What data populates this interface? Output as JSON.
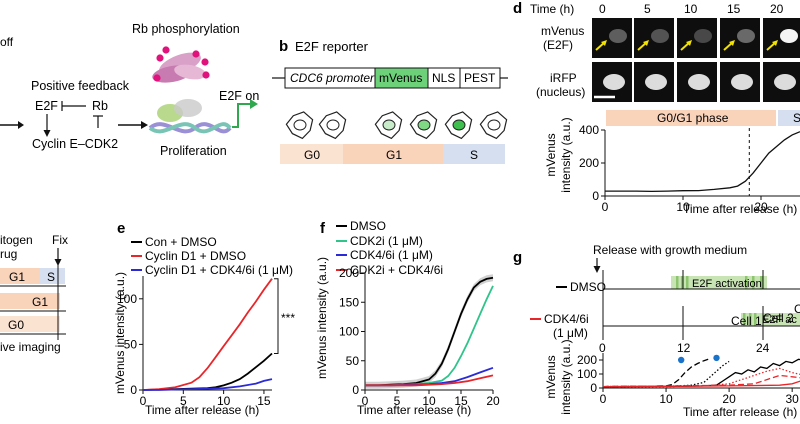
{
  "panels": {
    "b": "b",
    "d": "d",
    "e": "e",
    "f": "f",
    "g": "g"
  },
  "panel_a_top": {
    "off_label": "off",
    "positive_feedback": "Positive feedback",
    "e2f": "E2F",
    "rb": "Rb",
    "cyclin": "Cyclin E–CDK2",
    "rb_phos": "Rb phosphorylation",
    "e2f_on": "E2F on",
    "proliferation": "Proliferation"
  },
  "panel_b": {
    "title": "E2F reporter",
    "segments": [
      "CDC6 promoter",
      "mVenus",
      "NLS",
      "PEST"
    ],
    "phases": [
      "G0",
      "G1",
      "S"
    ],
    "colors": {
      "mvenus": "#6dd17a",
      "g0": "#fbe3d2",
      "g1": "#fad3bb",
      "s": "#d6dff0"
    }
  },
  "panel_d": {
    "time_label": "Time (h)",
    "times": [
      "0",
      "5",
      "10",
      "15",
      "20"
    ],
    "row1_label_1": "mVenus",
    "row1_label_2": "(E2F)",
    "row2_label_1": "iRFP",
    "row2_label_2": "(nucleus)",
    "phase_g0g1": "G0/G1 phase",
    "phase_s": "S",
    "ylabel_1": "mVenus",
    "ylabel_2": "intensity (a.u.)",
    "xlabel": "Time after release (h)",
    "yticks": [
      "0",
      "200",
      "400"
    ],
    "xticks": [
      "0",
      "10",
      "20"
    ]
  },
  "panel_a_bottom": {
    "mitogen": "itogen",
    "drug": "rug",
    "fix": "Fix",
    "g1": "G1",
    "s": "S",
    "g0": "G0",
    "live": "ive imaging"
  },
  "panel_g_top": {
    "release_label": "Release with growth medium",
    "row1": "DMSO",
    "row2_1": "CDK4/6i",
    "row2_2": "(1 μM)",
    "activation_1": "E2F activation",
    "activation_2": "E2F ac",
    "ticks": [
      "0",
      "12",
      "24"
    ]
  },
  "chart_data": [
    {
      "panel": "d",
      "type": "line",
      "title": "",
      "xlabel": "Time after release (h)",
      "ylabel": "mVenus intensity (a.u.)",
      "xlim": [
        0,
        25
      ],
      "ylim": [
        0,
        400
      ],
      "series": [
        {
          "name": "mVenus",
          "x": [
            0,
            2,
            4,
            6,
            8,
            10,
            12,
            14,
            16,
            17,
            18,
            19,
            20,
            21,
            22,
            23,
            24,
            25
          ],
          "values": [
            30,
            30,
            30,
            28,
            30,
            32,
            33,
            40,
            50,
            60,
            90,
            140,
            200,
            260,
            300,
            340,
            370,
            390
          ]
        }
      ]
    },
    {
      "panel": "e",
      "type": "line",
      "xlabel": "Time after release (h)",
      "ylabel": "mVenus intensity (a.u.)",
      "xlim": [
        0,
        16
      ],
      "ylim": [
        0,
        125
      ],
      "yticks": [
        0,
        50,
        100
      ],
      "xticks": [
        0,
        5,
        10,
        15
      ],
      "annotation": "***",
      "series": [
        {
          "name": "Con + DMSO",
          "color": "#000000",
          "x": [
            0,
            2,
            4,
            6,
            8,
            9,
            10,
            11,
            12,
            13,
            14,
            15,
            16
          ],
          "values": [
            0,
            0.5,
            1,
            1.5,
            2,
            3,
            5,
            8,
            12,
            18,
            25,
            32,
            40
          ]
        },
        {
          "name": "Cyclin D1 + DMSO",
          "color": "#e8262a",
          "x": [
            0,
            2,
            4,
            6,
            7,
            8,
            9,
            10,
            11,
            12,
            13,
            14,
            15,
            16
          ],
          "values": [
            0,
            1,
            3,
            8,
            14,
            24,
            36,
            48,
            60,
            72,
            85,
            97,
            110,
            122
          ]
        },
        {
          "name": "Cyclin D1 + CDK4/6i (1 μM)",
          "color": "#2a2ad6",
          "x": [
            0,
            2,
            4,
            6,
            8,
            10,
            12,
            14,
            15,
            16
          ],
          "values": [
            0,
            0,
            0.5,
            1,
            1.5,
            2,
            4,
            7,
            10,
            12
          ]
        }
      ]
    },
    {
      "panel": "f",
      "type": "line",
      "xlabel": "Time after release (h)",
      "ylabel": "mVenus intensity (a.u.)",
      "xlim": [
        0,
        20
      ],
      "ylim": [
        0,
        200
      ],
      "yticks": [
        0,
        50,
        100,
        150,
        200
      ],
      "xticks": [
        0,
        5,
        10,
        15,
        20
      ],
      "series": [
        {
          "name": "DMSO",
          "color": "#000000",
          "x": [
            0,
            2,
            4,
            6,
            8,
            10,
            11,
            12,
            13,
            14,
            15,
            16,
            17,
            18,
            19,
            20
          ],
          "values": [
            8,
            8,
            9,
            10,
            12,
            18,
            28,
            45,
            70,
            100,
            130,
            155,
            175,
            185,
            190,
            192
          ]
        },
        {
          "name": "CDK2i (1 μM)",
          "color": "#2ec48a",
          "x": [
            0,
            2,
            4,
            6,
            8,
            10,
            12,
            13,
            14,
            15,
            16,
            17,
            18,
            19,
            20
          ],
          "values": [
            8,
            8,
            8,
            9,
            10,
            12,
            16,
            24,
            38,
            58,
            80,
            105,
            130,
            155,
            178
          ]
        },
        {
          "name": "CDK4/6i (1 μM)",
          "color": "#2a2ad6",
          "x": [
            0,
            4,
            8,
            10,
            12,
            14,
            16,
            18,
            20
          ],
          "values": [
            8,
            8,
            9,
            10,
            12,
            15,
            22,
            30,
            38
          ]
        },
        {
          "name": "CDK2i + CDK4/6i",
          "color": "#e8262a",
          "x": [
            0,
            4,
            8,
            10,
            12,
            14,
            16,
            18,
            20
          ],
          "values": [
            8,
            8,
            8,
            9,
            10,
            12,
            15,
            20,
            25
          ]
        }
      ]
    },
    {
      "panel": "g",
      "type": "line",
      "xlabel": "Time after release (h)",
      "ylabel": "mVenus intensity (a.u.)",
      "xlim": [
        0,
        36
      ],
      "ylim": [
        0,
        250
      ],
      "yticks": [
        0,
        100,
        200
      ],
      "xticks": [
        0,
        10,
        20,
        30
      ],
      "annotations": [
        "Cell 1",
        "Cell 2",
        "Cell 3"
      ],
      "series": [
        {
          "name": "Cell 1 (DMSO)",
          "style": "dashed",
          "color": "#000000",
          "x": [
            0,
            6,
            10,
            11,
            12,
            13,
            14,
            15,
            16,
            17
          ],
          "values": [
            10,
            12,
            15,
            25,
            60,
            110,
            150,
            175,
            195,
            210
          ]
        },
        {
          "name": "Cell 2 (DMSO)",
          "style": "dotted",
          "color": "#000000",
          "x": [
            0,
            8,
            12,
            14,
            16,
            17,
            18,
            19,
            20
          ],
          "values": [
            10,
            12,
            15,
            20,
            40,
            80,
            120,
            160,
            190
          ]
        },
        {
          "name": "Cell 3 (DMSO)",
          "style": "solid",
          "color": "#000000",
          "x": [
            0,
            12,
            16,
            18,
            19,
            20,
            21,
            22,
            23,
            24,
            25,
            26,
            27,
            28,
            29,
            30,
            31,
            32,
            33,
            34,
            35,
            36
          ],
          "values": [
            10,
            12,
            15,
            20,
            50,
            80,
            110,
            100,
            130,
            115,
            150,
            140,
            175,
            160,
            190,
            180,
            205,
            200,
            220,
            215,
            240,
            235
          ]
        },
        {
          "name": "CDK4/6i cell a",
          "style": "dotted",
          "color": "#e8262a",
          "x": [
            0,
            10,
            16,
            20,
            22,
            24,
            26,
            28,
            30,
            32,
            34,
            36
          ],
          "values": [
            8,
            10,
            15,
            30,
            60,
            90,
            120,
            140,
            110,
            90,
            60,
            40
          ]
        },
        {
          "name": "CDK4/6i cell b",
          "style": "dashed",
          "color": "#e8262a",
          "x": [
            0,
            10,
            20,
            24,
            26,
            28,
            30,
            32,
            34,
            36
          ],
          "values": [
            10,
            14,
            20,
            30,
            60,
            90,
            80,
            70,
            100,
            80
          ]
        },
        {
          "name": "CDK4/6i cell c",
          "style": "solid",
          "color": "#e8262a",
          "x": [
            0,
            10,
            20,
            28,
            30,
            32,
            34,
            36
          ],
          "values": [
            10,
            12,
            15,
            20,
            30,
            60,
            45,
            40
          ]
        }
      ]
    }
  ],
  "legends": {
    "e": [
      "Con + DMSO",
      "Cyclin D1 + DMSO",
      "Cyclin D1 + CDK4/6i (1 μM)"
    ],
    "f": [
      "DMSO",
      "CDK2i (1 μM)",
      "CDK4/6i (1 μM)",
      "CDK2i + CDK4/6i"
    ]
  },
  "axis_labels": {
    "ylabel_1line": "mVenus intensity (a.u.)",
    "xlabel": "Time after release (h)",
    "g_ylabel_1": "mVenus",
    "g_ylabel_2": "intensity (a.u.)"
  }
}
